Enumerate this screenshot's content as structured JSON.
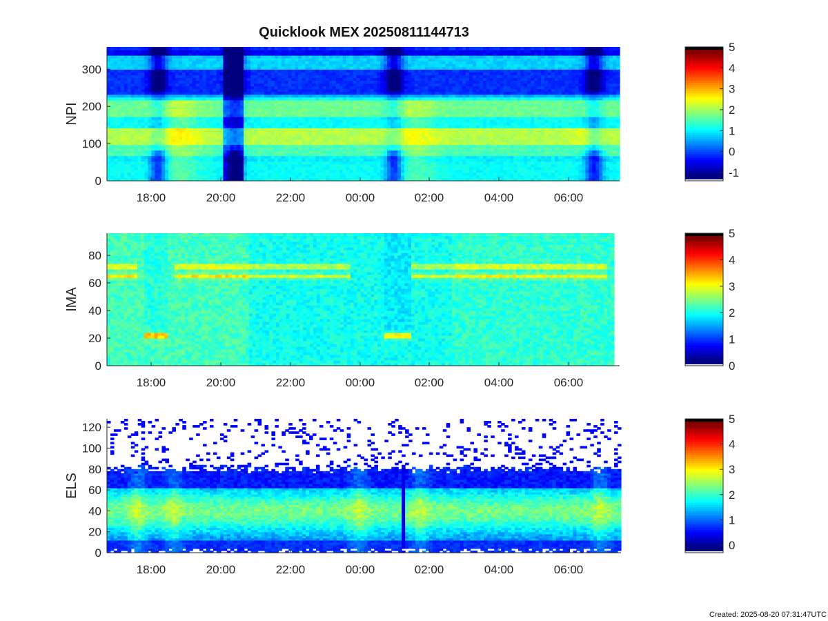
{
  "title": "Quicklook MEX 20250811144713",
  "created": "Created: 2025-08-20 07:31:47UTC",
  "chart_data": [
    {
      "type": "heatmap",
      "ylabel": "NPI",
      "ylim": [
        0,
        360
      ],
      "yticks": [
        "0",
        "100",
        "200",
        "300"
      ],
      "xticks": [
        "18:00",
        "20:00",
        "22:00",
        "00:00",
        "02:00",
        "04:00",
        "06:00"
      ],
      "colorbar": {
        "range": [
          -1.4,
          5
        ],
        "ticks": [
          "-1",
          "0",
          "1",
          "2",
          "3",
          "4",
          "5"
        ]
      }
    },
    {
      "type": "heatmap",
      "ylabel": "IMA",
      "ylim": [
        0,
        96
      ],
      "yticks": [
        "0",
        "20",
        "40",
        "60",
        "80"
      ],
      "xticks": [
        "18:00",
        "20:00",
        "22:00",
        "00:00",
        "02:00",
        "04:00",
        "06:00"
      ],
      "colorbar": {
        "range": [
          0,
          5
        ],
        "ticks": [
          "0",
          "1",
          "2",
          "3",
          "4",
          "5"
        ]
      }
    },
    {
      "type": "heatmap",
      "ylabel": "ELS",
      "ylim": [
        0,
        128
      ],
      "yticks": [
        "0",
        "20",
        "40",
        "60",
        "80",
        "100",
        "120"
      ],
      "xticks": [
        "18:00",
        "20:00",
        "22:00",
        "00:00",
        "02:00",
        "04:00",
        "06:00"
      ],
      "colorbar": {
        "range": [
          -0.3,
          5
        ],
        "ticks": [
          "0",
          "1",
          "2",
          "3",
          "4",
          "5"
        ]
      }
    }
  ]
}
